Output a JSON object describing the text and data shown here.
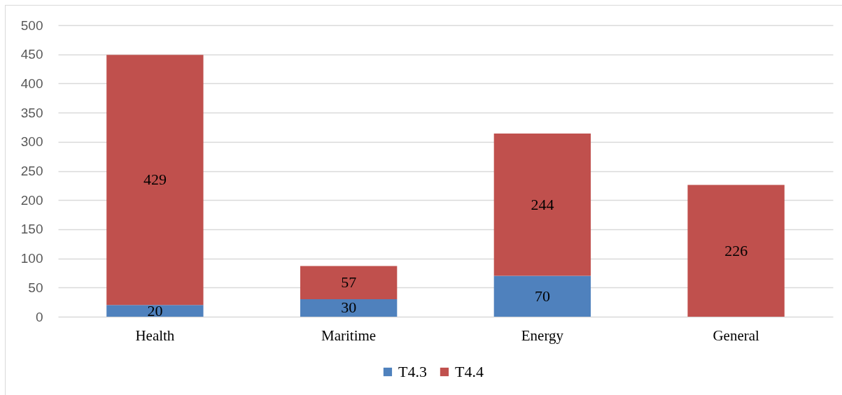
{
  "chart_data": {
    "type": "bar",
    "stacked": true,
    "categories": [
      "Health",
      "Maritime",
      "Energy",
      "General"
    ],
    "series": [
      {
        "name": "T4.3",
        "color": "#4f81bd",
        "values": [
          20,
          30,
          70,
          null
        ]
      },
      {
        "name": "T4.4",
        "color": "#c0504d",
        "values": [
          429,
          57,
          244,
          226
        ]
      }
    ],
    "ylim": [
      0,
      500
    ],
    "yticks": [
      0,
      50,
      100,
      150,
      200,
      250,
      300,
      350,
      400,
      450,
      500
    ],
    "grid": "y",
    "legend": "bottom",
    "data_labels": true
  }
}
